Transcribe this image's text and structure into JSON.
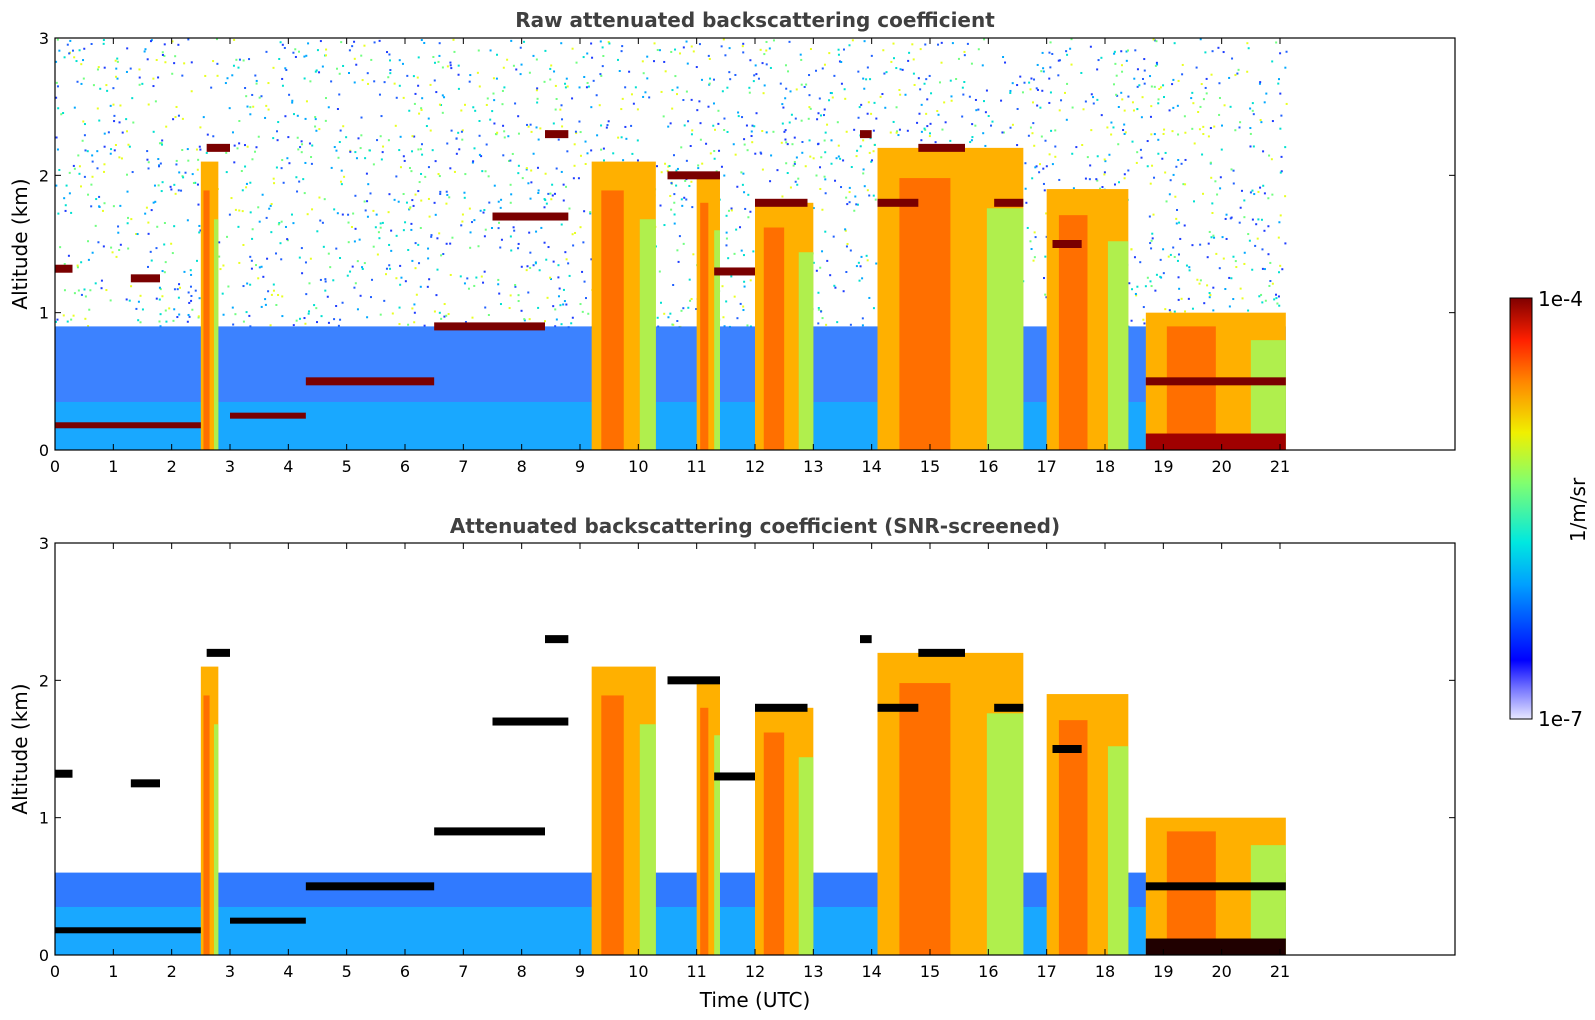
{
  "chart_data": [
    {
      "type": "heatmap",
      "title": "Raw attenuated backscattering coefficient",
      "xlabel": "",
      "ylabel": "Altitude (km)",
      "xlim": [
        0,
        24
      ],
      "ylim": [
        0,
        3
      ],
      "xticks": [
        "0",
        "1",
        "2",
        "3",
        "4",
        "5",
        "6",
        "7",
        "8",
        "9",
        "10",
        "11",
        "12",
        "13",
        "14",
        "15",
        "16",
        "17",
        "18",
        "19",
        "20",
        "21"
      ],
      "yticks": [
        "0",
        "1",
        "2",
        "3"
      ],
      "data_end_hour": 21.1,
      "cloud_layers": [
        {
          "t": [
            0.0,
            0.3
          ],
          "alt": 1.32
        },
        {
          "t": [
            1.3,
            1.8
          ],
          "alt": 1.25
        },
        {
          "t": [
            2.6,
            3.0
          ],
          "alt": 2.2
        },
        {
          "t": [
            4.3,
            6.5
          ],
          "alt": 0.5
        },
        {
          "t": [
            6.5,
            8.4
          ],
          "alt": 0.9
        },
        {
          "t": [
            7.5,
            8.8
          ],
          "alt": 1.7
        },
        {
          "t": [
            8.4,
            8.8
          ],
          "alt": 2.3
        },
        {
          "t": [
            10.5,
            11.4
          ],
          "alt": 2.0
        },
        {
          "t": [
            11.3,
            12.0
          ],
          "alt": 1.3
        },
        {
          "t": [
            12.0,
            12.9
          ],
          "alt": 1.8
        },
        {
          "t": [
            13.8,
            14.0
          ],
          "alt": 2.3
        },
        {
          "t": [
            14.1,
            14.8
          ],
          "alt": 1.8
        },
        {
          "t": [
            14.8,
            15.6
          ],
          "alt": 2.2
        },
        {
          "t": [
            16.1,
            16.6
          ],
          "alt": 1.8
        },
        {
          "t": [
            17.1,
            17.6
          ],
          "alt": 1.5
        },
        {
          "t": [
            18.7,
            21.1
          ],
          "alt": 0.5
        }
      ],
      "aerosol_columns": [
        {
          "t": [
            2.5,
            2.8
          ],
          "top": 2.1
        },
        {
          "t": [
            9.2,
            10.3
          ],
          "top": 2.1
        },
        {
          "t": [
            11.0,
            11.4
          ],
          "top": 2.0
        },
        {
          "t": [
            12.0,
            13.0
          ],
          "top": 1.8
        },
        {
          "t": [
            14.1,
            16.6
          ],
          "top": 2.2
        },
        {
          "t": [
            17.0,
            18.4
          ],
          "top": 1.9
        },
        {
          "t": [
            18.7,
            21.1
          ],
          "top": 1.0
        }
      ],
      "colorbar": {
        "min_label": "1e-7",
        "max_label": "1e-4",
        "label": "1/m/sr"
      }
    },
    {
      "type": "heatmap",
      "title": "Attenuated backscattering coefficient (SNR-screened)",
      "xlabel": "Time (UTC)",
      "ylabel": "Altitude (km)",
      "xlim": [
        0,
        24
      ],
      "ylim": [
        0,
        3
      ],
      "xticks": [
        "0",
        "1",
        "2",
        "3",
        "4",
        "5",
        "6",
        "7",
        "8",
        "9",
        "10",
        "11",
        "12",
        "13",
        "14",
        "15",
        "16",
        "17",
        "18",
        "19",
        "20",
        "21"
      ],
      "yticks": [
        "0",
        "1",
        "2",
        "3"
      ],
      "data_end_hour": 21.1,
      "colorbar": {
        "min_label": "1e-7",
        "max_label": "1e-4",
        "label": "1/m/sr"
      }
    }
  ],
  "colorbar": {
    "max_label": "1e-4",
    "min_label": "1e-7",
    "unit_label": "1/m/sr",
    "colormap": "jet",
    "scale": "log"
  },
  "colors": {
    "cloud": "#7a0000",
    "background_noise": "#1e3cff",
    "axis": "#000000",
    "title": "#404040"
  }
}
